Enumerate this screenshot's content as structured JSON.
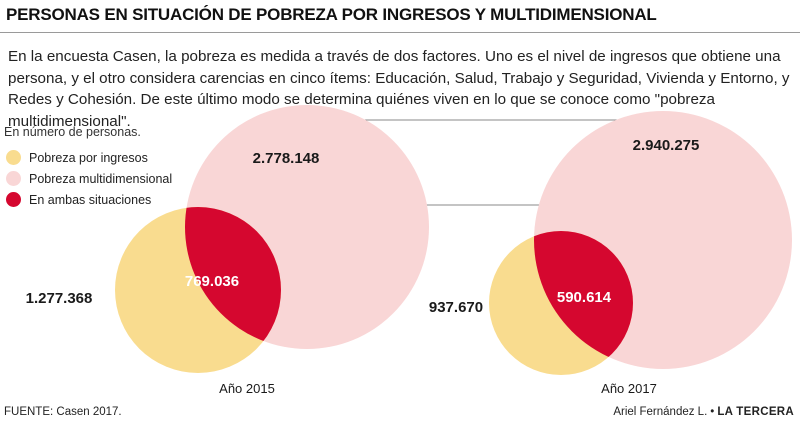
{
  "title": "PERSONAS EN SITUACIÓN DE POBREZA POR INGRESOS Y MULTIDIMENSIONAL",
  "intro": "En la encuesta Casen, la pobreza es medida a través de dos factores. Uno es el nivel de ingresos que obtiene una persona, y el otro considera carencias en cinco ítems: Educación, Salud, Trabajo y Seguridad, Vivienda y Entorno, y Redes y Cohesión. De este último modo se determina quiénes viven en lo que se conoce como \"pobreza multidimensional\".",
  "unit_note": "En número de personas.",
  "legend": [
    {
      "label": "Pobreza por ingresos",
      "color": "#f9dc8f"
    },
    {
      "label": "Pobreza multidimensional",
      "color": "#f9d6d6"
    },
    {
      "label": "En ambas situaciones",
      "color": "#d5072f"
    }
  ],
  "colors": {
    "ingresos": "#f9dc8f",
    "multi": "#f9d6d6",
    "ambas": "#d5072f",
    "connector": "#8a8a8a"
  },
  "diagrams": [
    {
      "year_label": "Año 2015",
      "ingresos_only": "1.277.368",
      "multidimensional_only": "2.778.148",
      "ambas": "769.036"
    },
    {
      "year_label": "Año 2017",
      "ingresos_only": "937.670",
      "multidimensional_only": "2.940.275",
      "ambas": "590.614"
    }
  ],
  "footer": {
    "source": "FUENTE: Casen 2017.",
    "author": "Ariel Fernández L.",
    "separator": "•",
    "brand": "LA TERCERA"
  }
}
